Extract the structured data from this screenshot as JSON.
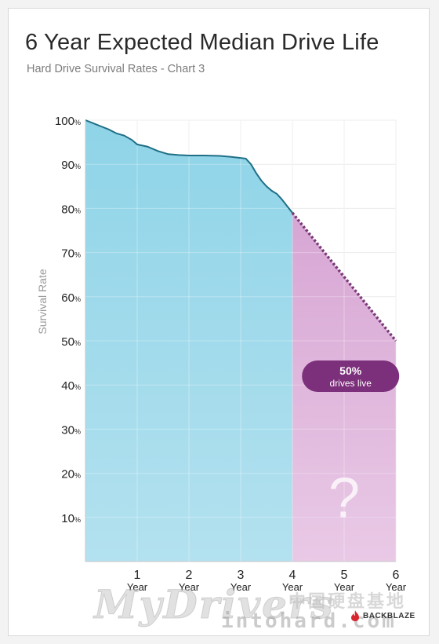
{
  "title": "6 Year Expected Median Drive Life",
  "subtitle": "Hard Drive Survival Rates - Chart 3",
  "chart_data": {
    "type": "area",
    "ylabel": "Survival Rate",
    "xlim": [
      0,
      6
    ],
    "ylim": [
      0,
      100
    ],
    "grid": true,
    "y_ticks": [
      {
        "value": 100,
        "num": "100",
        "unit": "%"
      },
      {
        "value": 90,
        "num": "90",
        "unit": "%"
      },
      {
        "value": 80,
        "num": "80",
        "unit": "%"
      },
      {
        "value": 70,
        "num": "70",
        "unit": "%"
      },
      {
        "value": 60,
        "num": "60",
        "unit": "%"
      },
      {
        "value": 50,
        "num": "50",
        "unit": "%"
      },
      {
        "value": 40,
        "num": "40",
        "unit": "%"
      },
      {
        "value": 30,
        "num": "30",
        "unit": "%"
      },
      {
        "value": 20,
        "num": "20",
        "unit": "%"
      },
      {
        "value": 10,
        "num": "10",
        "unit": "%"
      }
    ],
    "x_ticks": [
      {
        "value": 1,
        "num": "1",
        "unit": "Year"
      },
      {
        "value": 2,
        "num": "2",
        "unit": "Year"
      },
      {
        "value": 3,
        "num": "3",
        "unit": "Year"
      },
      {
        "value": 4,
        "num": "4",
        "unit": "Year"
      },
      {
        "value": 5,
        "num": "5",
        "unit": "Year"
      },
      {
        "value": 6,
        "num": "6",
        "unit": "Year"
      }
    ],
    "series": [
      {
        "kind": "observed",
        "color": "#8fd4e8",
        "line_color": "#1f6f86",
        "x": [
          0,
          0.15,
          0.3,
          0.45,
          0.6,
          0.75,
          0.9,
          1.0,
          1.2,
          1.4,
          1.6,
          1.8,
          2.0,
          2.3,
          2.6,
          2.8,
          2.95,
          3.1,
          3.2,
          3.3,
          3.4,
          3.5,
          3.6,
          3.7,
          3.8,
          3.9,
          4.0
        ],
        "y": [
          100,
          99.3,
          98.6,
          97.9,
          97.0,
          96.5,
          95.5,
          94.5,
          94.0,
          93.0,
          92.3,
          92.1,
          92.0,
          92.0,
          91.9,
          91.7,
          91.5,
          91.3,
          90.0,
          88.0,
          86.3,
          85.0,
          84.0,
          83.3,
          82.0,
          80.5,
          79.0
        ]
      },
      {
        "kind": "projected",
        "color": "#d7a6d4",
        "line_color": "#7a3a78",
        "x": [
          4,
          6
        ],
        "y": [
          79,
          50
        ]
      }
    ],
    "annotations": [
      {
        "value_label": "50%",
        "text": "drives live",
        "color": "#7c2f7a",
        "x": 5.2,
        "y": 42
      },
      {
        "text": "?",
        "x": 5.0,
        "y": 14
      }
    ]
  },
  "watermark": {
    "main": "MyDrivers",
    "sub": "intohard.com",
    "cn": "中国硬盘基地"
  },
  "brand": {
    "name": "BACKBLAZE",
    "icon": "flame-icon",
    "color": "#d8262e"
  }
}
